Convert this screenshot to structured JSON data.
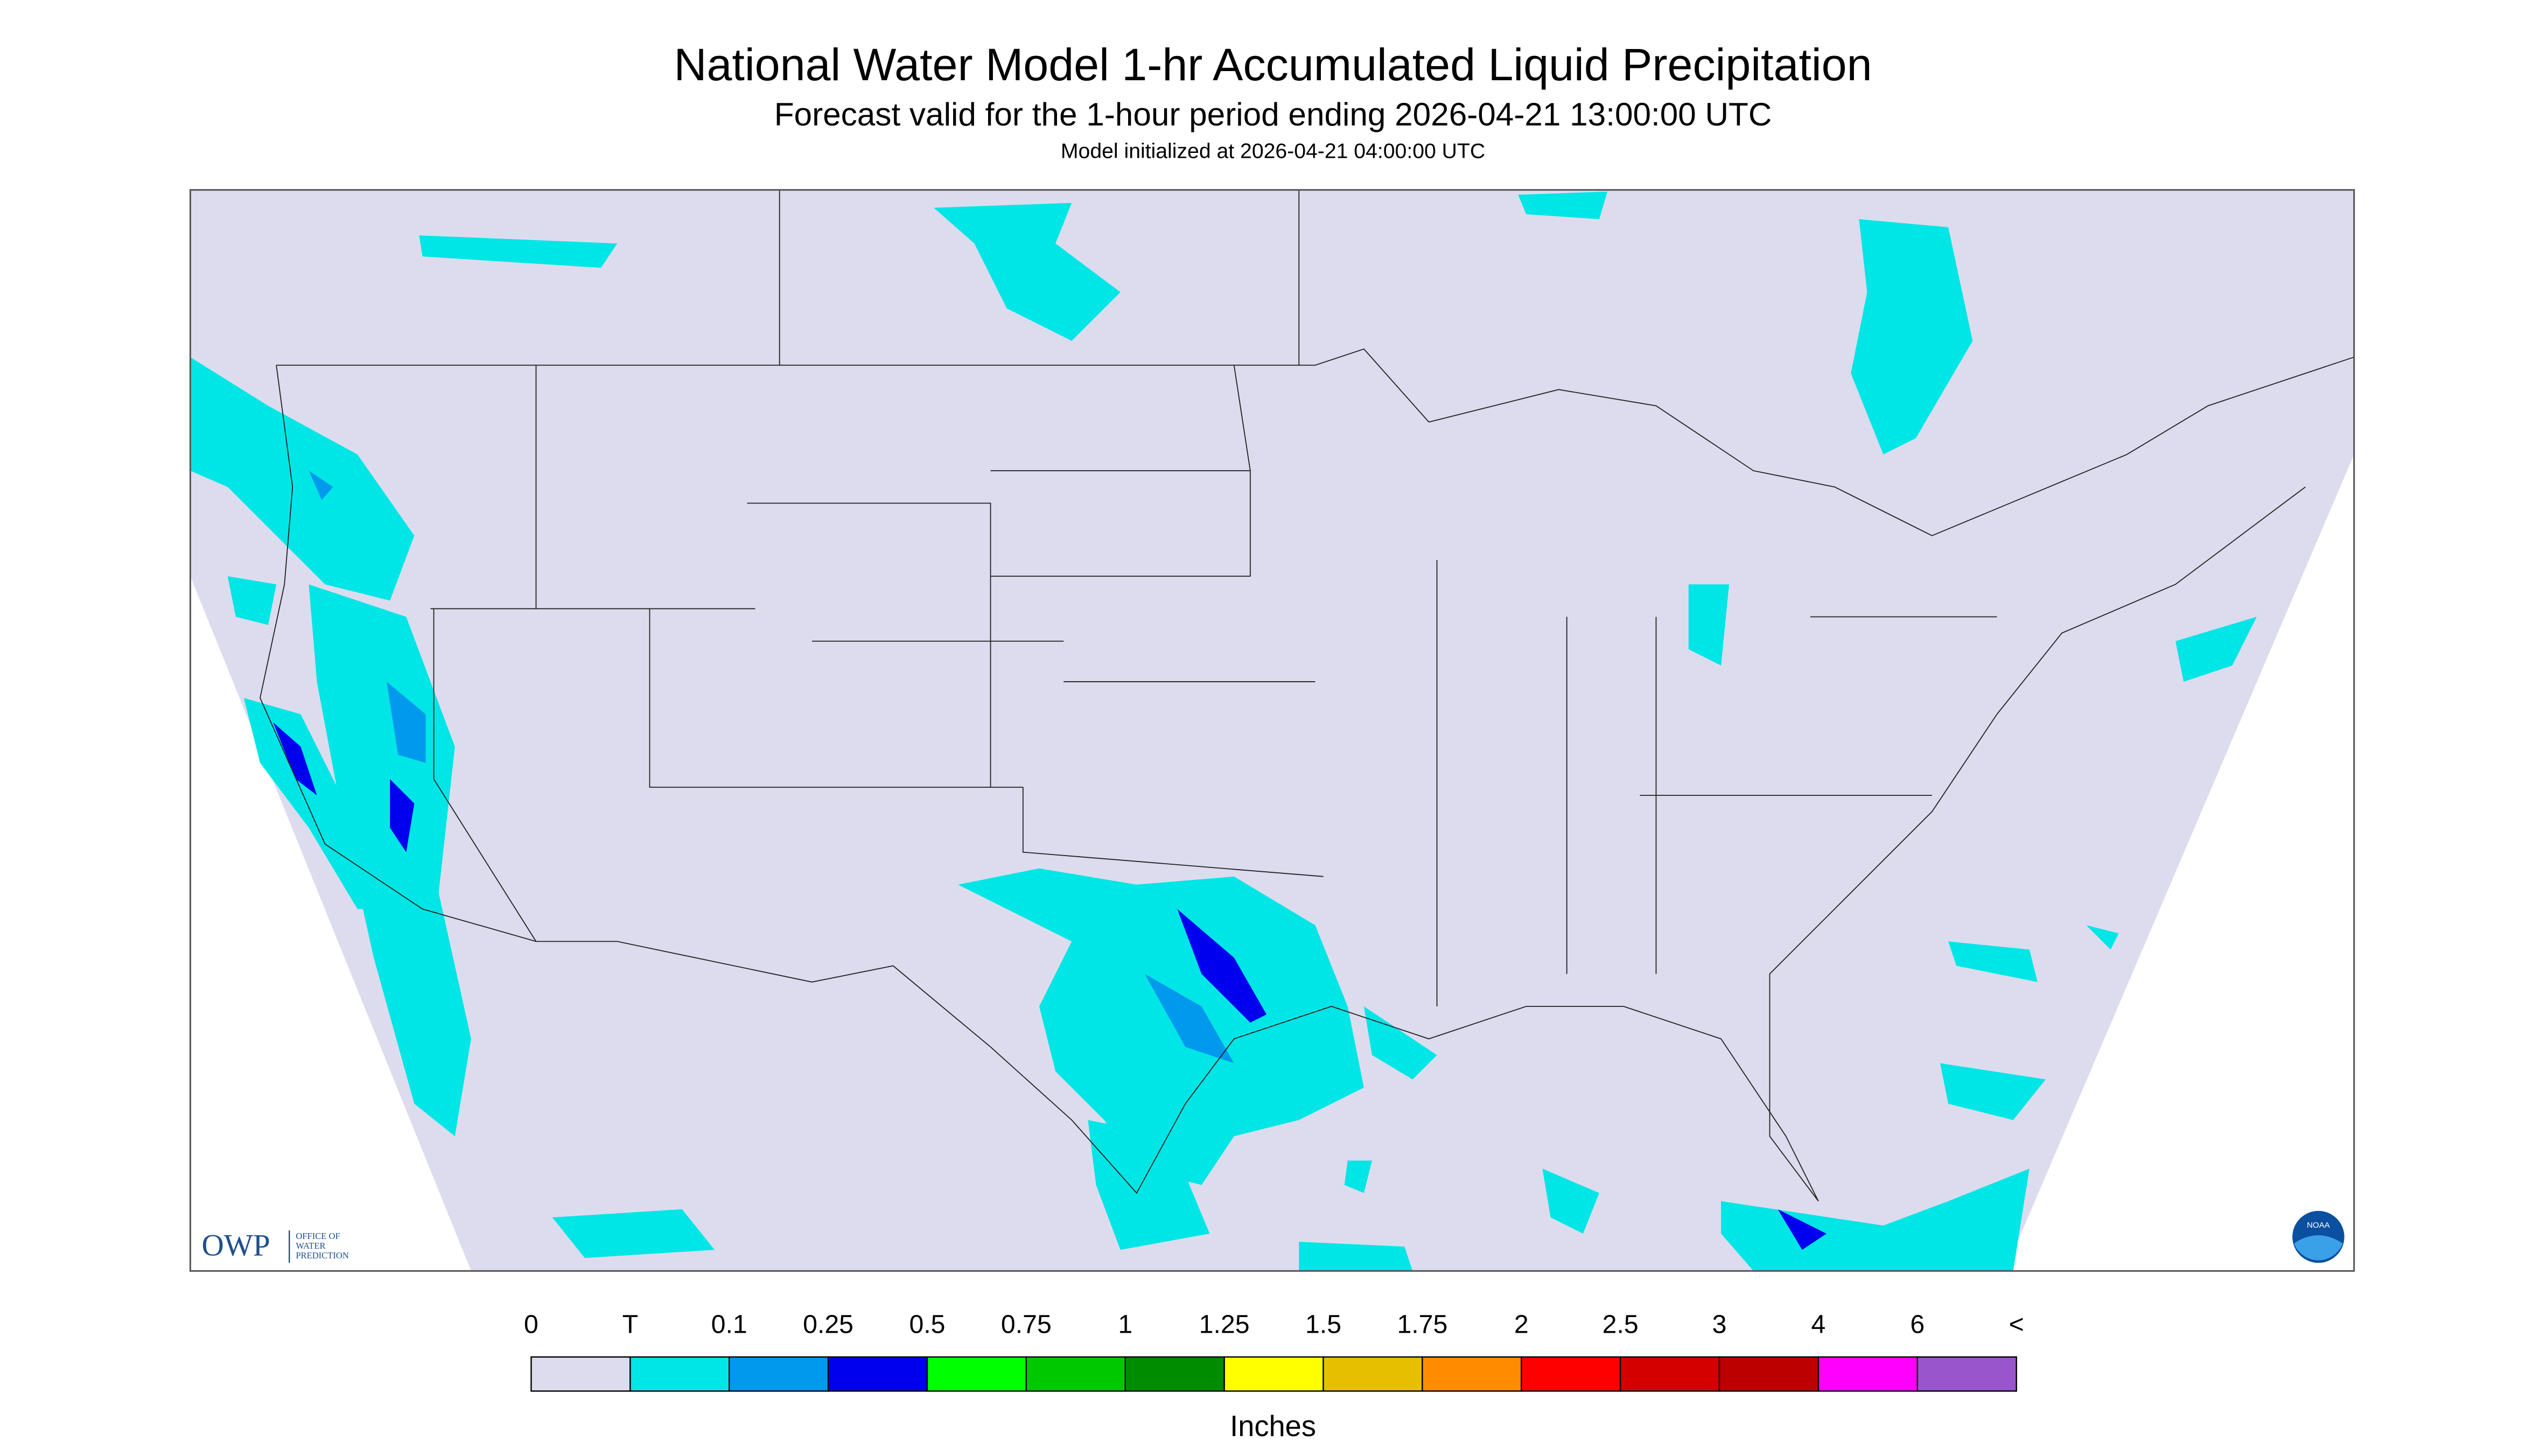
{
  "header": {
    "title": "National Water Model 1-hr Accumulated Liquid Precipitation",
    "subtitle": "Forecast valid for the 1-hour period ending 2026-04-21 13:00:00 UTC",
    "note": "Model initialized at 2026-04-21 04:00:00 UTC"
  },
  "logos": {
    "owp": "OWP",
    "owp_lines": [
      "OFFICE OF",
      "WATER",
      "PREDICTION"
    ],
    "noaa": "NOAA"
  },
  "legend": {
    "labels": [
      "0",
      "T",
      "0.1",
      "0.25",
      "0.5",
      "0.75",
      "1",
      "1.25",
      "1.5",
      "1.75",
      "2",
      "2.5",
      "3",
      "4",
      "6",
      "<"
    ],
    "colors": [
      "#dcdcee",
      "#00e6e6",
      "#0099ee",
      "#0000ee",
      "#00ff00",
      "#00c800",
      "#008c00",
      "#ffff00",
      "#e6bf00",
      "#ff8c00",
      "#ff0000",
      "#d40000",
      "#bc0000",
      "#ff00ff",
      "#9955cc"
    ],
    "unit": "Inches"
  }
}
